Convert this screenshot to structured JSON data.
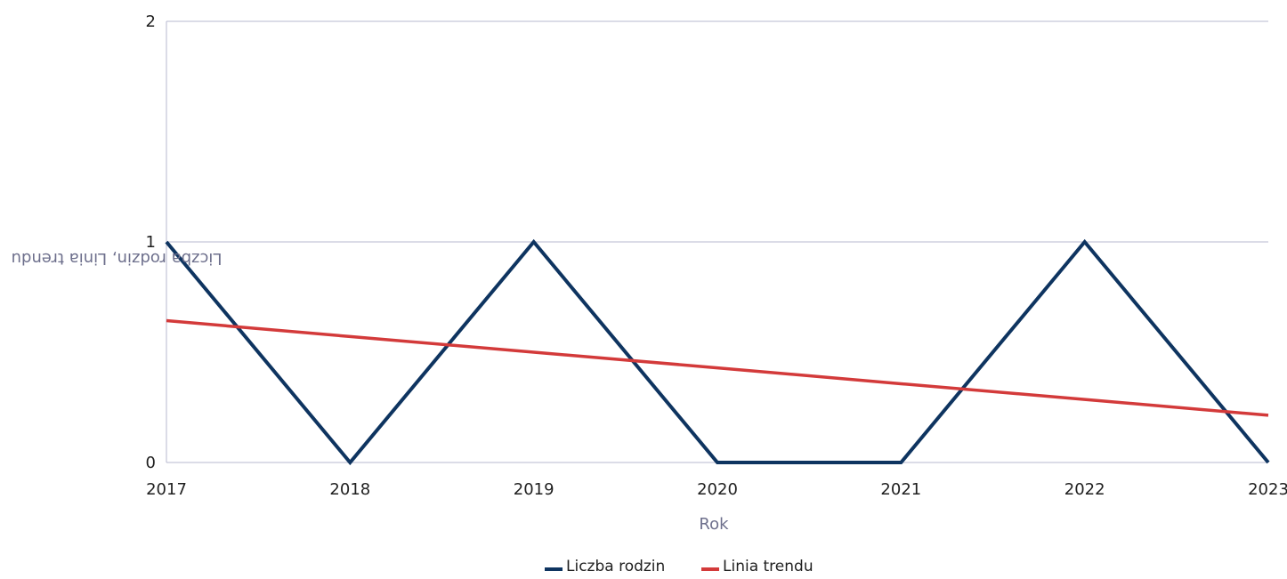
{
  "chart_data": {
    "type": "line",
    "x": [
      "2017",
      "2018",
      "2019",
      "2020",
      "2021",
      "2022",
      "2023"
    ],
    "series": [
      {
        "name": "Liczba rodzin",
        "values": [
          1,
          0,
          1,
          0,
          0,
          1,
          0
        ],
        "color": "#0e3460"
      },
      {
        "name": "Linia trendu",
        "values": [
          0.643,
          0.571,
          0.5,
          0.429,
          0.357,
          0.286,
          0.214
        ],
        "color": "#d33a3a"
      }
    ],
    "xlabel": "Rok",
    "ylabel": "Liczba rodzin, Linia trendu",
    "ylim": [
      0,
      2
    ],
    "yticks": [
      "0",
      "1",
      "2"
    ],
    "grid": true,
    "legend_position": "bottom",
    "colors": {
      "grid": "#b7b9cf",
      "axis_title": "#6d6f8c",
      "tick_text": "#1f1f1f"
    }
  }
}
